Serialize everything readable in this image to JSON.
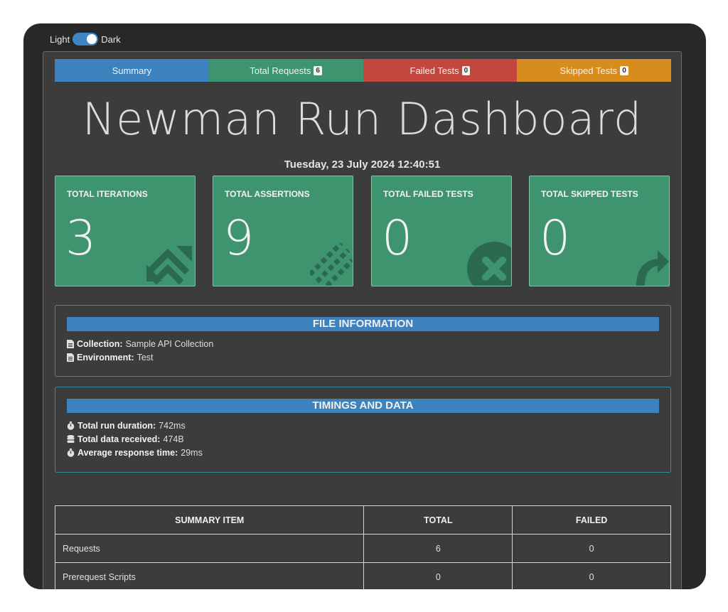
{
  "theme_toggle": {
    "light_label": "Light",
    "dark_label": "Dark"
  },
  "tabs": [
    {
      "label": "Summary",
      "badge": null
    },
    {
      "label": "Total Requests",
      "badge": "6"
    },
    {
      "label": "Failed Tests",
      "badge": "0"
    },
    {
      "label": "Skipped Tests",
      "badge": "0"
    }
  ],
  "title": "Newman Run Dashboard",
  "date": "Tuesday, 23 July 2024 12:40:51",
  "cards": [
    {
      "label": "TOTAL ITERATIONS",
      "value": "3",
      "icon": "refresh-icon"
    },
    {
      "label": "TOTAL ASSERTIONS",
      "value": "9",
      "icon": "tasks-icon"
    },
    {
      "label": "TOTAL FAILED TESTS",
      "value": "0",
      "icon": "times-circle-icon"
    },
    {
      "label": "TOTAL SKIPPED TESTS",
      "value": "0",
      "icon": "share-arrow-icon"
    }
  ],
  "file_info": {
    "heading": "FILE INFORMATION",
    "collection_label": "Collection:",
    "collection_value": "Sample API Collection",
    "environment_label": "Environment:",
    "environment_value": "Test"
  },
  "timings": {
    "heading": "TIMINGS AND DATA",
    "duration_label": "Total run duration:",
    "duration_value": "742ms",
    "data_label": "Total data received:",
    "data_value": "474B",
    "avg_label": "Average response time:",
    "avg_value": "29ms"
  },
  "summary_table": {
    "headers": [
      "SUMMARY ITEM",
      "TOTAL",
      "FAILED"
    ],
    "rows": [
      {
        "item": "Requests",
        "total": "6",
        "failed": "0"
      },
      {
        "item": "Prerequest Scripts",
        "total": "0",
        "failed": "0"
      }
    ]
  },
  "colors": {
    "summary_tab": "#3e82bd",
    "requests_tab": "#3f9470",
    "failed_tab": "#c3473d",
    "skipped_tab": "#d98c1e",
    "card_bg": "#3f9470",
    "card_icon": "#2c6a50"
  }
}
